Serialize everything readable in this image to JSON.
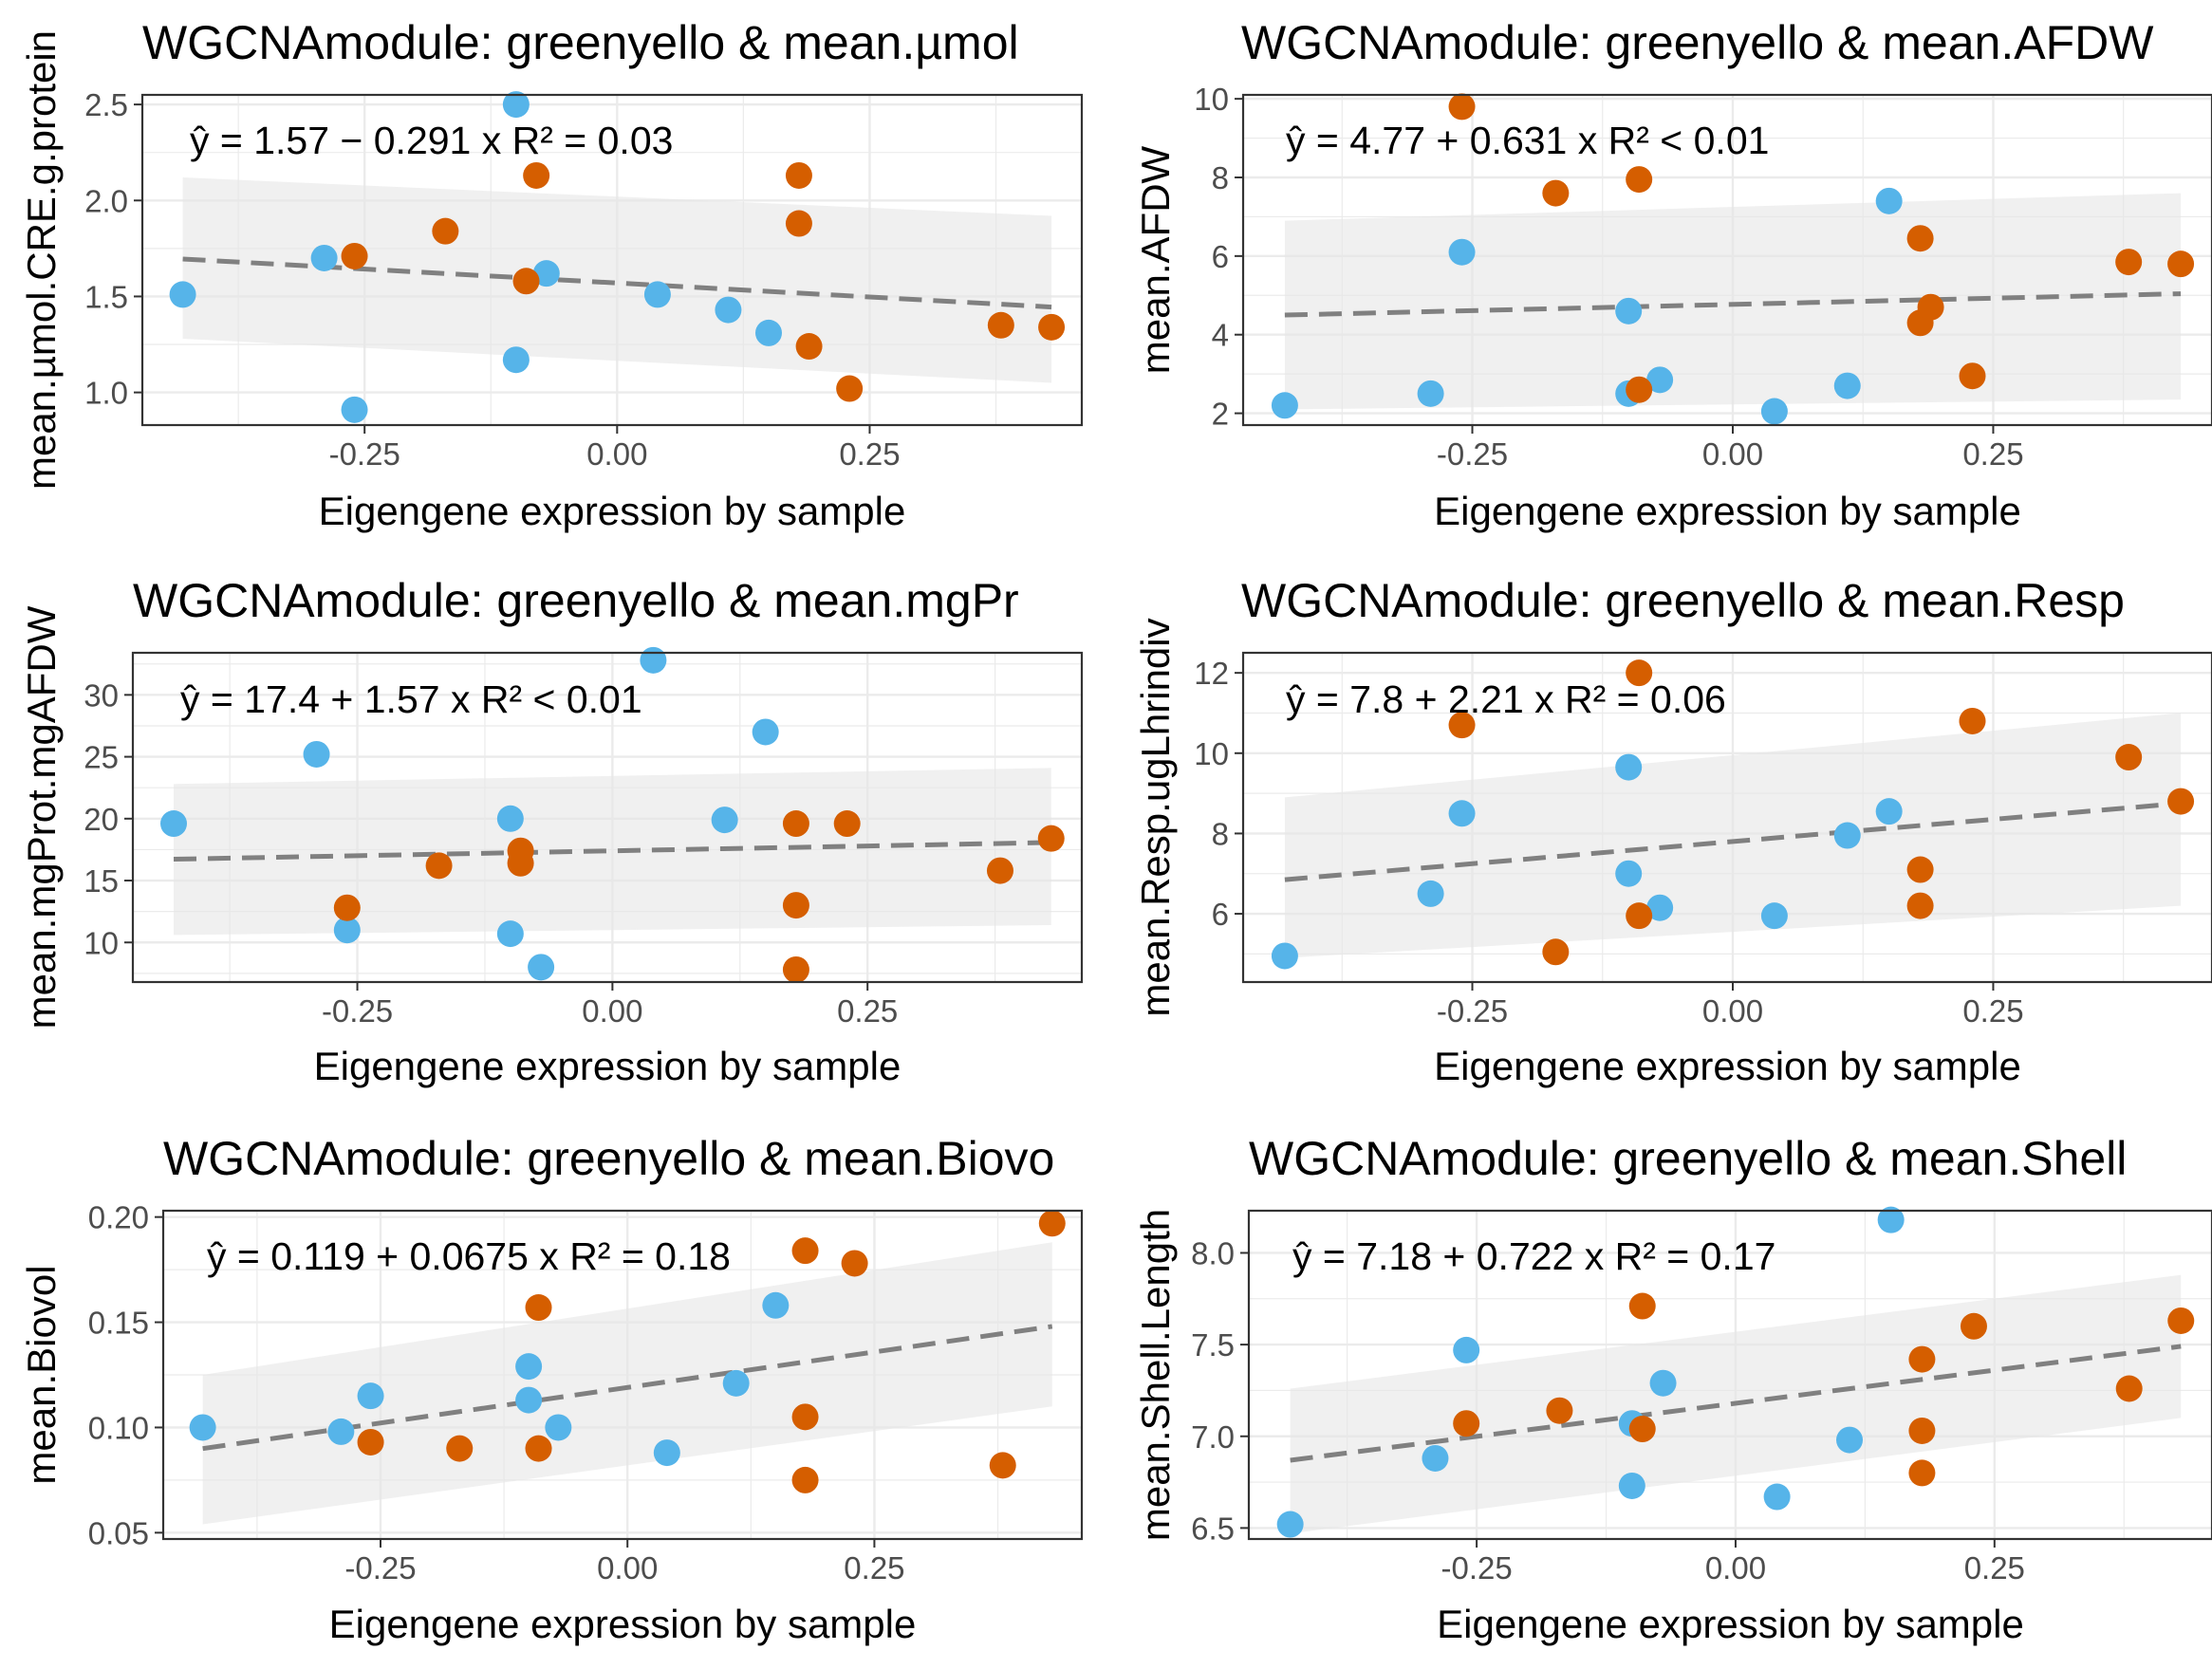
{
  "colors": {
    "group_a": "#56B4E9",
    "group_b": "#D55E00",
    "fit_line": "#808080",
    "ribbon": "#e6e6e6",
    "grid": "#ebebeb",
    "panel_border": "#333333"
  },
  "chart_data": [
    {
      "type": "scatter",
      "title": "WGCNAmodule: greenyello & mean.µmol",
      "xlabel": "Eigengene expression by sample",
      "ylabel": "mean.µmol.CRE.g.protein",
      "xlim": [
        -0.47,
        0.46
      ],
      "ylim": [
        0.83,
        2.55
      ],
      "x_ticks": [
        -0.25,
        0.0,
        0.25
      ],
      "x_tick_labels": [
        "-0.25",
        "0.00",
        "0.25"
      ],
      "y_ticks": [
        1.0,
        1.5,
        2.0,
        2.5
      ],
      "y_tick_labels": [
        "1.0",
        "1.5",
        "2.0",
        "2.5"
      ],
      "grid": true,
      "equation": "ŷ = 1.57 − 0.291 x   R² = 0.03",
      "fit": {
        "intercept": 1.57,
        "slope": -0.291,
        "x": [
          -0.43,
          0.43
        ],
        "ci_lower": [
          1.28,
          1.05
        ],
        "ci_upper": [
          2.12,
          1.92
        ]
      },
      "series": [
        {
          "color_key": "group_a",
          "points": [
            [
              -0.43,
              1.51
            ],
            [
              -0.29,
              1.7
            ],
            [
              -0.26,
              0.91
            ],
            [
              -0.1,
              1.17
            ],
            [
              -0.1,
              2.5
            ],
            [
              -0.07,
              1.62
            ],
            [
              0.04,
              1.51
            ],
            [
              0.11,
              1.43
            ],
            [
              0.15,
              1.31
            ]
          ]
        },
        {
          "color_key": "group_b",
          "points": [
            [
              -0.26,
              1.71
            ],
            [
              -0.17,
              1.84
            ],
            [
              -0.09,
              1.58
            ],
            [
              -0.08,
              2.13
            ],
            [
              0.18,
              2.13
            ],
            [
              0.18,
              1.88
            ],
            [
              0.19,
              1.24
            ],
            [
              0.23,
              1.02
            ],
            [
              0.38,
              1.35
            ],
            [
              0.43,
              1.34
            ]
          ]
        }
      ]
    },
    {
      "type": "scatter",
      "title": "WGCNAmodule: greenyello & mean.AFDW",
      "xlabel": "Eigengene expression by sample",
      "ylabel": "mean.AFDW",
      "xlim": [
        -0.47,
        0.46
      ],
      "ylim": [
        1.7,
        10.1
      ],
      "x_ticks": [
        -0.25,
        0.0,
        0.25
      ],
      "x_tick_labels": [
        "-0.25",
        "0.00",
        "0.25"
      ],
      "y_ticks": [
        2,
        4,
        6,
        8,
        10
      ],
      "y_tick_labels": [
        "2",
        "4",
        "6",
        "8",
        "10"
      ],
      "grid": true,
      "equation": "ŷ = 4.77 + 0.631 x   R² < 0.01",
      "fit": {
        "intercept": 4.77,
        "slope": 0.631,
        "x": [
          -0.43,
          0.43
        ],
        "ci_lower": [
          2.1,
          2.35
        ],
        "ci_upper": [
          6.9,
          7.6
        ]
      },
      "series": [
        {
          "color_key": "group_a",
          "points": [
            [
              -0.43,
              2.2
            ],
            [
              -0.29,
              2.5
            ],
            [
              -0.26,
              6.1
            ],
            [
              -0.1,
              4.6
            ],
            [
              -0.1,
              2.5
            ],
            [
              -0.07,
              2.85
            ],
            [
              0.04,
              2.05
            ],
            [
              0.11,
              2.7
            ],
            [
              0.15,
              7.4
            ]
          ]
        },
        {
          "color_key": "group_b",
          "points": [
            [
              -0.26,
              9.8
            ],
            [
              -0.17,
              7.6
            ],
            [
              -0.09,
              7.95
            ],
            [
              -0.09,
              2.6
            ],
            [
              0.18,
              6.45
            ],
            [
              0.18,
              4.3
            ],
            [
              0.19,
              4.7
            ],
            [
              0.23,
              2.95
            ],
            [
              0.38,
              5.85
            ],
            [
              0.43,
              5.8
            ]
          ]
        }
      ]
    },
    {
      "type": "scatter",
      "title": "WGCNAmodule: greenyello & mean.mgPr",
      "xlabel": "Eigengene expression by sample",
      "ylabel": "mean.mgProt.mgAFDW",
      "xlim": [
        -0.47,
        0.46
      ],
      "ylim": [
        6.8,
        33.4
      ],
      "x_ticks": [
        -0.25,
        0.0,
        0.25
      ],
      "x_tick_labels": [
        "-0.25",
        "0.00",
        "0.25"
      ],
      "y_ticks": [
        10,
        15,
        20,
        25,
        30
      ],
      "y_tick_labels": [
        "10",
        "15",
        "20",
        "25",
        "30"
      ],
      "grid": true,
      "equation": "ŷ = 17.4 + 1.57 x   R² < 0.01",
      "fit": {
        "intercept": 17.4,
        "slope": 1.57,
        "x": [
          -0.43,
          0.43
        ],
        "ci_lower": [
          10.6,
          11.4
        ],
        "ci_upper": [
          22.8,
          24.1
        ]
      },
      "series": [
        {
          "color_key": "group_a",
          "points": [
            [
              -0.43,
              19.6
            ],
            [
              -0.29,
              25.2
            ],
            [
              -0.26,
              11.0
            ],
            [
              -0.1,
              20.0
            ],
            [
              -0.1,
              10.7
            ],
            [
              -0.07,
              8.0
            ],
            [
              0.04,
              32.8
            ],
            [
              0.11,
              19.9
            ],
            [
              0.15,
              27.0
            ]
          ]
        },
        {
          "color_key": "group_b",
          "points": [
            [
              -0.26,
              12.8
            ],
            [
              -0.17,
              16.2
            ],
            [
              -0.09,
              17.4
            ],
            [
              -0.09,
              16.4
            ],
            [
              0.18,
              19.6
            ],
            [
              0.18,
              13.0
            ],
            [
              0.18,
              7.8
            ],
            [
              0.23,
              19.6
            ],
            [
              0.38,
              15.8
            ],
            [
              0.43,
              18.4
            ]
          ]
        }
      ]
    },
    {
      "type": "scatter",
      "title": "WGCNAmodule: greenyello & mean.Resp",
      "xlabel": "Eigengene expression by sample",
      "ylabel": "mean.Resp.ugLhrindiv",
      "xlim": [
        -0.47,
        0.46
      ],
      "ylim": [
        4.3,
        12.5
      ],
      "x_ticks": [
        -0.25,
        0.0,
        0.25
      ],
      "x_tick_labels": [
        "-0.25",
        "0.00",
        "0.25"
      ],
      "y_ticks": [
        6,
        8,
        10,
        12
      ],
      "y_tick_labels": [
        "6",
        "8",
        "10",
        "12"
      ],
      "grid": true,
      "equation": "ŷ = 7.8 + 2.21 x   R² = 0.06",
      "fit": {
        "intercept": 7.8,
        "slope": 2.21,
        "x": [
          -0.43,
          0.43
        ],
        "ci_lower": [
          4.9,
          6.2
        ],
        "ci_upper": [
          8.9,
          11.0
        ]
      },
      "series": [
        {
          "color_key": "group_a",
          "points": [
            [
              -0.43,
              4.95
            ],
            [
              -0.29,
              6.5
            ],
            [
              -0.26,
              8.5
            ],
            [
              -0.1,
              9.65
            ],
            [
              -0.1,
              7.0
            ],
            [
              -0.07,
              6.15
            ],
            [
              0.04,
              5.95
            ],
            [
              0.11,
              7.95
            ],
            [
              0.15,
              8.55
            ]
          ]
        },
        {
          "color_key": "group_b",
          "points": [
            [
              -0.26,
              10.7
            ],
            [
              -0.17,
              5.05
            ],
            [
              -0.09,
              12.0
            ],
            [
              -0.09,
              5.95
            ],
            [
              0.18,
              6.2
            ],
            [
              0.18,
              7.1
            ],
            [
              0.23,
              10.8
            ],
            [
              0.38,
              9.9
            ],
            [
              0.43,
              8.8
            ]
          ]
        }
      ]
    },
    {
      "type": "scatter",
      "title": "WGCNAmodule: greenyello & mean.Biovo",
      "xlabel": "Eigengene expression by sample",
      "ylabel": "mean.Biovol",
      "xlim": [
        -0.47,
        0.46
      ],
      "ylim": [
        0.047,
        0.203
      ],
      "x_ticks": [
        -0.25,
        0.0,
        0.25
      ],
      "x_tick_labels": [
        "-0.25",
        "0.00",
        "0.25"
      ],
      "y_ticks": [
        0.05,
        0.1,
        0.15,
        0.2
      ],
      "y_tick_labels": [
        "0.05",
        "0.10",
        "0.15",
        "0.20"
      ],
      "grid": true,
      "equation": "ŷ = 0.119 + 0.0675 x   R² = 0.18",
      "fit": {
        "intercept": 0.119,
        "slope": 0.0675,
        "x": [
          -0.43,
          0.43
        ],
        "ci_lower": [
          0.054,
          0.11
        ],
        "ci_upper": [
          0.125,
          0.188
        ]
      },
      "series": [
        {
          "color_key": "group_a",
          "points": [
            [
              -0.43,
              0.1
            ],
            [
              -0.29,
              0.098
            ],
            [
              -0.26,
              0.115
            ],
            [
              -0.1,
              0.129
            ],
            [
              -0.1,
              0.113
            ],
            [
              -0.07,
              0.1
            ],
            [
              0.04,
              0.088
            ],
            [
              0.11,
              0.121
            ],
            [
              0.15,
              0.158
            ]
          ]
        },
        {
          "color_key": "group_b",
          "points": [
            [
              -0.26,
              0.093
            ],
            [
              -0.17,
              0.09
            ],
            [
              -0.09,
              0.157
            ],
            [
              -0.09,
              0.09
            ],
            [
              0.18,
              0.184
            ],
            [
              0.18,
              0.105
            ],
            [
              0.18,
              0.075
            ],
            [
              0.23,
              0.178
            ],
            [
              0.38,
              0.082
            ],
            [
              0.43,
              0.197
            ]
          ]
        }
      ]
    },
    {
      "type": "scatter",
      "title": "WGCNAmodule: greenyello & mean.Shell",
      "xlabel": "Eigengene expression by sample",
      "ylabel": "mean.Shell.Length",
      "xlim": [
        -0.47,
        0.46
      ],
      "ylim": [
        6.44,
        8.23
      ],
      "x_ticks": [
        -0.25,
        0.0,
        0.25
      ],
      "x_tick_labels": [
        "-0.25",
        "0.00",
        "0.25"
      ],
      "y_ticks": [
        6.5,
        7.0,
        7.5,
        8.0
      ],
      "y_tick_labels": [
        "6.5",
        "7.0",
        "7.5",
        "8.0"
      ],
      "grid": true,
      "equation": "ŷ = 7.18 + 0.722 x   R² = 0.17",
      "fit": {
        "intercept": 7.18,
        "slope": 0.722,
        "x": [
          -0.43,
          0.43
        ],
        "ci_lower": [
          6.47,
          7.1
        ],
        "ci_upper": [
          7.26,
          7.88
        ]
      },
      "series": [
        {
          "color_key": "group_a",
          "points": [
            [
              -0.43,
              6.52
            ],
            [
              -0.29,
              6.88
            ],
            [
              -0.26,
              7.47
            ],
            [
              -0.1,
              7.07
            ],
            [
              -0.1,
              6.73
            ],
            [
              -0.07,
              7.29
            ],
            [
              0.04,
              6.67
            ],
            [
              0.11,
              6.98
            ],
            [
              0.15,
              8.18
            ]
          ]
        },
        {
          "color_key": "group_b",
          "points": [
            [
              -0.26,
              7.07
            ],
            [
              -0.17,
              7.14
            ],
            [
              -0.09,
              7.71
            ],
            [
              -0.09,
              7.04
            ],
            [
              0.18,
              7.03
            ],
            [
              0.18,
              6.8
            ],
            [
              0.18,
              7.42
            ],
            [
              0.23,
              7.6
            ],
            [
              0.38,
              7.26
            ],
            [
              0.43,
              7.63
            ]
          ]
        }
      ]
    }
  ]
}
